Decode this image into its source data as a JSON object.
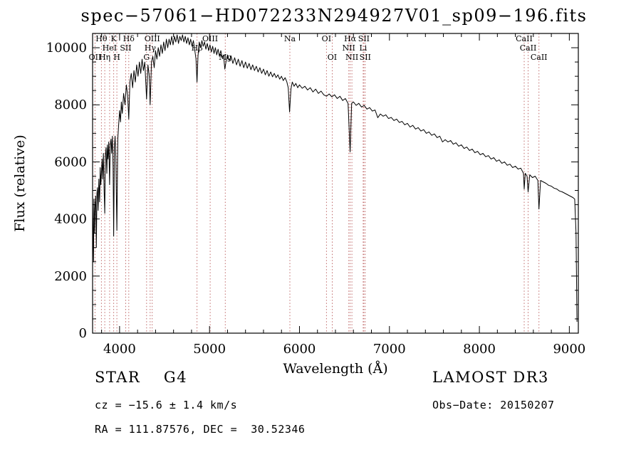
{
  "title": "spec−57061−HD072233N294927V01_sp09−196.fits",
  "chart_data": {
    "type": "line",
    "title": "spec−57061−HD072233N294927V01_sp09−196.fits",
    "xlabel": "Wavelength (Å)",
    "ylabel": "Flux (relative)",
    "xlim": [
      3700,
      9100
    ],
    "ylim": [
      0,
      10500
    ],
    "xticks": [
      4000,
      5000,
      6000,
      7000,
      8000,
      9000
    ],
    "yticks": [
      0,
      2000,
      4000,
      6000,
      8000,
      10000
    ],
    "x_minor_step": 200,
    "y_minor_step": 500,
    "grid": false,
    "legend": "none",
    "line_color": "#000000",
    "marker_line_color": "#c06a6a",
    "marker_label_color": "#7e2020",
    "spectral_lines": [
      {
        "wavelength": 3727,
        "label": "OII",
        "row": 3
      },
      {
        "wavelength": 3798,
        "label": "Hθ",
        "row": 1
      },
      {
        "wavelength": 3835,
        "label": "Hη",
        "row": 3
      },
      {
        "wavelength": 3889,
        "label": "HeI",
        "row": 2
      },
      {
        "wavelength": 3934,
        "label": "K",
        "row": 1
      },
      {
        "wavelength": 3970,
        "label": "H",
        "row": 3
      },
      {
        "wavelength": 4068,
        "label": "SII",
        "row": 2
      },
      {
        "wavelength": 4102,
        "label": "Hδ",
        "row": 1
      },
      {
        "wavelength": 4300,
        "label": "G",
        "row": 3
      },
      {
        "wavelength": 4340,
        "label": "Hγ",
        "row": 2
      },
      {
        "wavelength": 4363,
        "label": "OIII",
        "row": 1
      },
      {
        "wavelength": 4861,
        "label": "Hβ",
        "row": 2
      },
      {
        "wavelength": 5007,
        "label": "OIII",
        "row": 1
      },
      {
        "wavelength": 5175,
        "label": "Mg",
        "row": 3
      },
      {
        "wavelength": 5893,
        "label": "Na",
        "row": 1
      },
      {
        "wavelength": 6300,
        "label": "OI",
        "row": 1
      },
      {
        "wavelength": 6364,
        "label": "OI",
        "row": 3
      },
      {
        "wavelength": 6548,
        "label": "NII",
        "row": 2
      },
      {
        "wavelength": 6563,
        "label": "Hα",
        "row": 1
      },
      {
        "wavelength": 6583,
        "label": "NII",
        "row": 3
      },
      {
        "wavelength": 6708,
        "label": "Li",
        "row": 2
      },
      {
        "wavelength": 6716,
        "label": "SII",
        "row": 1
      },
      {
        "wavelength": 6731,
        "label": "SII",
        "row": 3
      },
      {
        "wavelength": 8498,
        "label": "CaII",
        "row": 1
      },
      {
        "wavelength": 8542,
        "label": "CaII",
        "row": 2
      },
      {
        "wavelength": 8662,
        "label": "CaII",
        "row": 3
      }
    ],
    "series": [
      {
        "name": "spectrum",
        "x": [
          3700,
          3710,
          3715,
          3722,
          3727,
          3735,
          3742,
          3748,
          3755,
          3762,
          3770,
          3778,
          3785,
          3792,
          3798,
          3805,
          3812,
          3820,
          3828,
          3835,
          3842,
          3850,
          3858,
          3865,
          3872,
          3880,
          3889,
          3896,
          3905,
          3912,
          3920,
          3928,
          3934,
          3942,
          3950,
          3958,
          3970,
          3980,
          3990,
          4000,
          4010,
          4020,
          4030,
          4045,
          4060,
          4075,
          4090,
          4102,
          4115,
          4130,
          4145,
          4160,
          4175,
          4190,
          4205,
          4220,
          4235,
          4250,
          4265,
          4280,
          4300,
          4315,
          4330,
          4340,
          4355,
          4370,
          4385,
          4400,
          4415,
          4430,
          4445,
          4460,
          4475,
          4490,
          4505,
          4520,
          4535,
          4550,
          4565,
          4580,
          4595,
          4610,
          4625,
          4640,
          4655,
          4670,
          4685,
          4700,
          4715,
          4730,
          4745,
          4760,
          4775,
          4790,
          4805,
          4820,
          4835,
          4850,
          4861,
          4872,
          4885,
          4900,
          4915,
          4930,
          4945,
          4960,
          4975,
          4990,
          5005,
          5020,
          5035,
          5050,
          5065,
          5080,
          5095,
          5110,
          5125,
          5140,
          5155,
          5170,
          5185,
          5200,
          5220,
          5240,
          5260,
          5280,
          5300,
          5320,
          5340,
          5360,
          5380,
          5400,
          5420,
          5440,
          5460,
          5480,
          5500,
          5520,
          5540,
          5560,
          5580,
          5600,
          5620,
          5640,
          5660,
          5680,
          5700,
          5720,
          5740,
          5760,
          5780,
          5800,
          5820,
          5840,
          5860,
          5875,
          5890,
          5905,
          5920,
          5940,
          5960,
          5980,
          6000,
          6030,
          6060,
          6090,
          6120,
          6150,
          6180,
          6210,
          6240,
          6270,
          6300,
          6330,
          6360,
          6390,
          6420,
          6450,
          6480,
          6510,
          6540,
          6563,
          6580,
          6600,
          6630,
          6660,
          6690,
          6720,
          6750,
          6780,
          6810,
          6840,
          6870,
          6900,
          6930,
          6960,
          6990,
          7020,
          7050,
          7080,
          7110,
          7140,
          7170,
          7200,
          7230,
          7260,
          7290,
          7320,
          7350,
          7380,
          7410,
          7440,
          7470,
          7500,
          7530,
          7560,
          7590,
          7620,
          7650,
          7680,
          7710,
          7740,
          7770,
          7800,
          7830,
          7860,
          7890,
          7920,
          7950,
          7980,
          8010,
          8040,
          8070,
          8100,
          8130,
          8160,
          8190,
          8220,
          8250,
          8280,
          8310,
          8340,
          8370,
          8400,
          8430,
          8460,
          8490,
          8498,
          8510,
          8530,
          8542,
          8560,
          8590,
          8620,
          8650,
          8662,
          8680,
          8710,
          8740,
          8770,
          8800,
          8830,
          8860,
          8890,
          8920,
          8950,
          8980,
          9010,
          9040,
          9060,
          9075,
          9085
        ],
        "y": [
          4600,
          2500,
          4700,
          3500,
          4400,
          4800,
          3000,
          4900,
          5100,
          4300,
          5400,
          4600,
          5800,
          5200,
          5600,
          6100,
          5400,
          6300,
          5000,
          4200,
          6200,
          6500,
          5600,
          6600,
          6100,
          6700,
          5200,
          6600,
          6800,
          6300,
          6900,
          5800,
          3400,
          6500,
          6900,
          6200,
          3600,
          6800,
          7300,
          7800,
          7400,
          8100,
          7700,
          8400,
          8000,
          8700,
          8300,
          7500,
          8800,
          9100,
          8600,
          9200,
          8800,
          9400,
          9000,
          9500,
          9100,
          9600,
          9200,
          9500,
          8200,
          9400,
          9000,
          8000,
          9500,
          9700,
          9300,
          9900,
          9600,
          10000,
          9700,
          10100,
          9800,
          10200,
          9900,
          10300,
          10000,
          10300,
          10100,
          10400,
          10100,
          10400,
          10200,
          10450,
          10150,
          10400,
          10250,
          10450,
          10200,
          10400,
          10150,
          10350,
          10100,
          10300,
          10050,
          10250,
          9950,
          9600,
          8800,
          9700,
          10200,
          10000,
          10250,
          10050,
          10200,
          9950,
          10150,
          9900,
          10100,
          9850,
          10050,
          9800,
          10000,
          9750,
          9950,
          9700,
          9900,
          9650,
          9750,
          9250,
          9550,
          9750,
          9550,
          9700,
          9450,
          9650,
          9400,
          9600,
          9350,
          9550,
          9300,
          9500,
          9280,
          9450,
          9230,
          9400,
          9200,
          9350,
          9150,
          9300,
          9100,
          9250,
          9050,
          9200,
          9000,
          9150,
          8980,
          9100,
          8950,
          9050,
          8900,
          9000,
          8850,
          8950,
          8800,
          8600,
          7750,
          8550,
          8800,
          8650,
          8750,
          8600,
          8700,
          8580,
          8650,
          8520,
          8600,
          8450,
          8550,
          8400,
          8480,
          8350,
          8300,
          8380,
          8280,
          8350,
          8220,
          8300,
          8150,
          8220,
          8050,
          6350,
          8050,
          8100,
          7980,
          8050,
          7920,
          7980,
          7850,
          7900,
          7780,
          7820,
          7550,
          7680,
          7600,
          7650,
          7520,
          7560,
          7450,
          7500,
          7380,
          7420,
          7300,
          7350,
          7220,
          7280,
          7150,
          7200,
          7080,
          7130,
          7000,
          7050,
          6930,
          6980,
          6850,
          6900,
          6700,
          6780,
          6700,
          6750,
          6620,
          6670,
          6550,
          6600,
          6470,
          6520,
          6400,
          6450,
          6320,
          6370,
          6250,
          6300,
          6180,
          6220,
          6100,
          6150,
          6020,
          6070,
          5950,
          6000,
          5880,
          5920,
          5800,
          5850,
          5750,
          5780,
          5600,
          5050,
          5600,
          5500,
          4950,
          5550,
          5450,
          5500,
          5350,
          4350,
          5350,
          5300,
          5250,
          5180,
          5150,
          5080,
          5050,
          4980,
          4950,
          4900,
          4850,
          4800,
          4750,
          4700,
          3500,
          400
        ]
      }
    ]
  },
  "footer": {
    "left": {
      "class_line": "STAR    G4",
      "cz_line": "cz = −15.6 ± 1.4 km/s",
      "radec_line": "RA = 111.87576, DEC =  30.52346"
    },
    "right": {
      "survey": "LAMOST DR3",
      "obsdate_line": "Obs−Date: 20150207"
    }
  }
}
